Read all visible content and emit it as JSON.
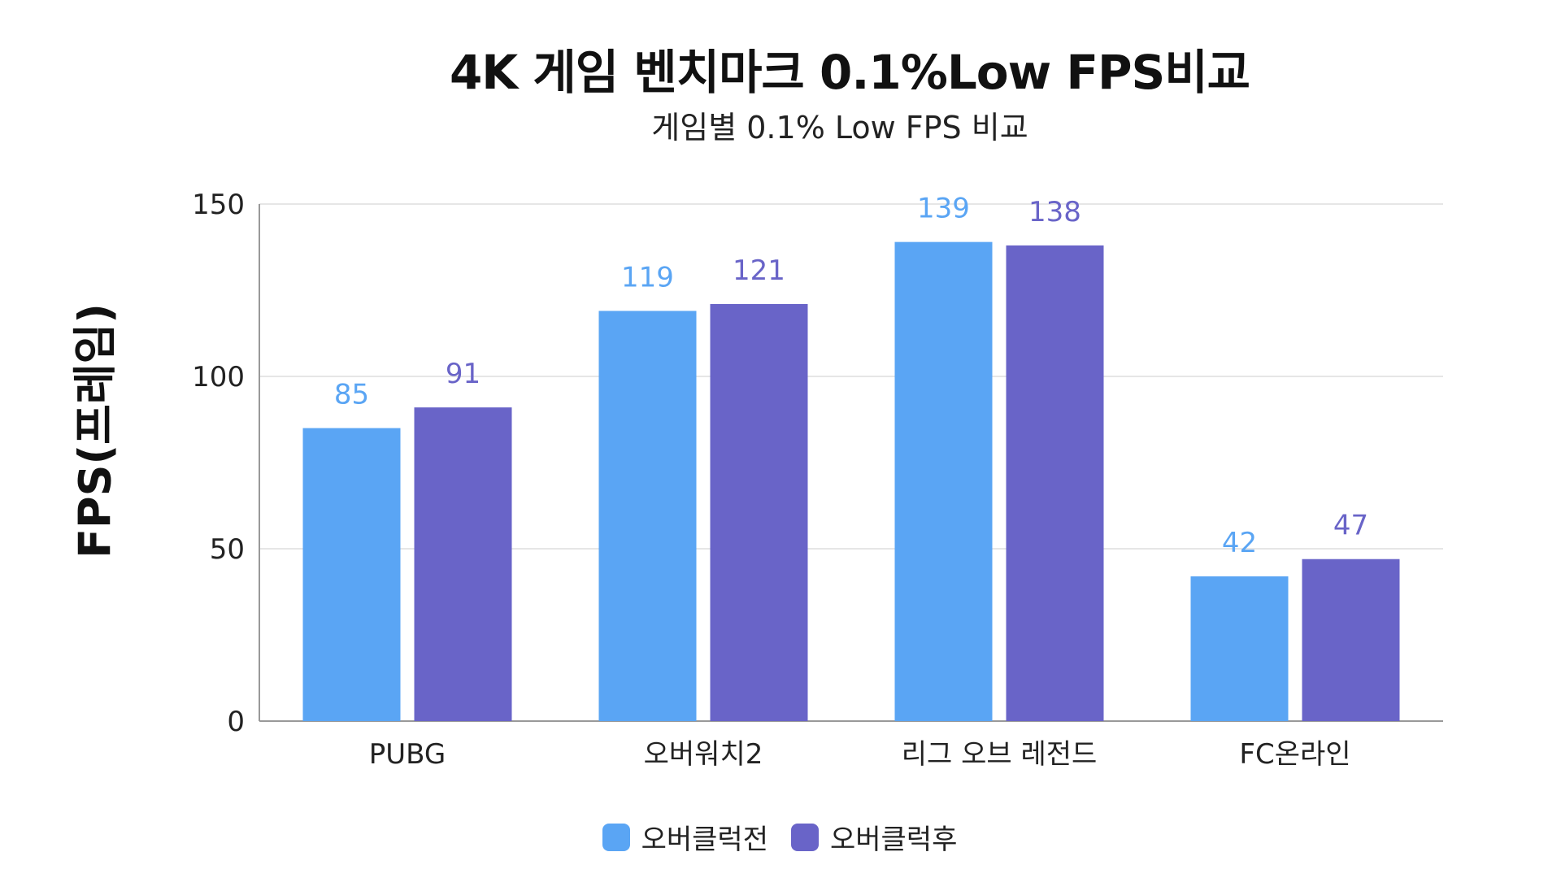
{
  "chart_data": {
    "type": "bar",
    "title": "4K 게임 벤치마크 0.1%Low  FPS비교",
    "subtitle": "게임별 0.1%  Low FPS 비교",
    "xlabel": "",
    "ylabel": "FPS(프레임)",
    "ylim": [
      0,
      150
    ],
    "yticks": [
      0,
      50,
      100,
      150
    ],
    "categories": [
      "PUBG",
      "오버워치2",
      "리그 오브 레전드",
      "FC온라인"
    ],
    "series": [
      {
        "name": "오버클럭전",
        "values": [
          85,
          119,
          139,
          42
        ],
        "color": "#5aa5f4"
      },
      {
        "name": "오버클럭후",
        "values": [
          91,
          121,
          138,
          47
        ],
        "color": "#6964c8"
      }
    ],
    "grid": true,
    "legend": "bottom-center",
    "axis_color": "#999999",
    "grid_color": "#dddddd"
  }
}
